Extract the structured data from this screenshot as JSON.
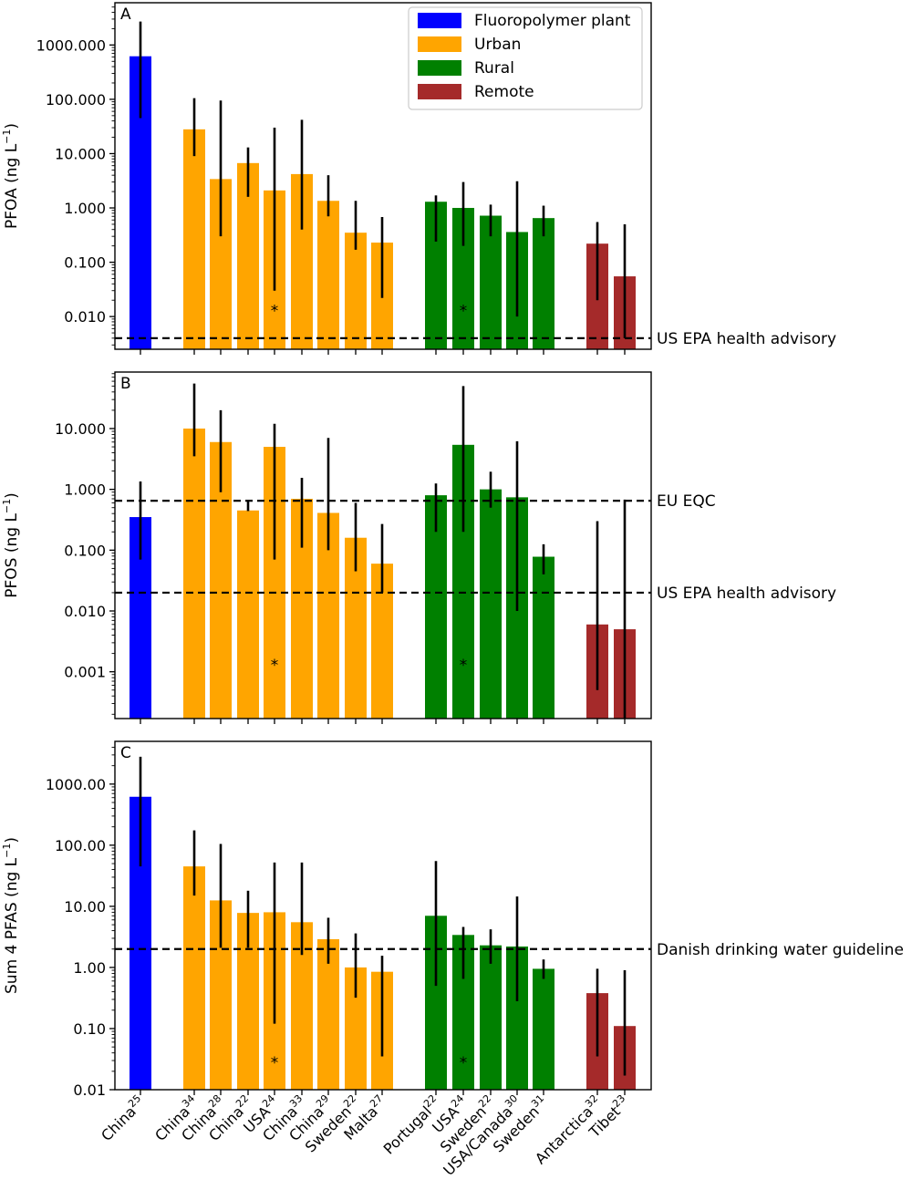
{
  "legend": {
    "placement": "top-right of panel A",
    "items": [
      {
        "label": "Fluoropolymer plant",
        "color": "#0000ff"
      },
      {
        "label": "Urban",
        "color": "#ffa500"
      },
      {
        "label": "Rural",
        "color": "#008000"
      },
      {
        "label": "Remote",
        "color": "#a52a2a"
      }
    ]
  },
  "categories": [
    {
      "name": "China",
      "ref": "25",
      "group": 0
    },
    {
      "name": "China",
      "ref": "34",
      "group": 1
    },
    {
      "name": "China",
      "ref": "28",
      "group": 1
    },
    {
      "name": "China",
      "ref": "22",
      "group": 1
    },
    {
      "name": "USA",
      "ref": "24",
      "group": 1
    },
    {
      "name": "China",
      "ref": "33",
      "group": 1
    },
    {
      "name": "China",
      "ref": "29",
      "group": 1
    },
    {
      "name": "Sweden",
      "ref": "22",
      "group": 1
    },
    {
      "name": "Malta",
      "ref": "27",
      "group": 1
    },
    {
      "name": "Portugal",
      "ref": "22",
      "group": 2
    },
    {
      "name": "USA",
      "ref": "24",
      "group": 2
    },
    {
      "name": "Sweden",
      "ref": "22",
      "group": 2
    },
    {
      "name": "USA/Canada",
      "ref": "30",
      "group": 2
    },
    {
      "name": "Sweden",
      "ref": "31",
      "group": 2
    },
    {
      "name": "Antarctica",
      "ref": "32",
      "group": 3
    },
    {
      "name": "Tibet",
      "ref": "23",
      "group": 3
    }
  ],
  "chart_data": [
    {
      "type": "bar",
      "panel_label": "A",
      "ylabel": "PFOA (ng L",
      "ylabel_sup": "−1",
      "ylabel_close": ")",
      "yscale": "log",
      "ylim": [
        0.0025,
        6000
      ],
      "yticks": [
        0.01,
        0.1,
        1,
        10,
        100,
        1000
      ],
      "ytick_labels": [
        "0.010",
        "0.100",
        "1.000",
        "10.000",
        "100.000",
        "1000.000"
      ],
      "values": [
        620,
        28,
        3.4,
        6.7,
        2.1,
        4.2,
        1.35,
        0.35,
        0.23,
        1.3,
        1.0,
        0.72,
        0.36,
        0.65,
        0.22,
        0.055
      ],
      "err_low": [
        45,
        9,
        0.3,
        1.6,
        0.03,
        0.4,
        0.7,
        0.17,
        0.022,
        0.24,
        0.2,
        0.3,
        0.01,
        0.3,
        0.02,
        0.004
      ],
      "err_high": [
        2700,
        105,
        95,
        13,
        30,
        42,
        4,
        1.35,
        0.68,
        1.7,
        3,
        1.15,
        3.1,
        1.1,
        0.55,
        0.5
      ],
      "asterisk_at": [
        4,
        10
      ],
      "asterisk_label": "*",
      "asterisk_y": 0.014,
      "reference_lines": [
        {
          "y": 0.004,
          "label": "US EPA health advisory"
        }
      ]
    },
    {
      "type": "bar",
      "panel_label": "B",
      "ylabel": "PFOS (ng L",
      "ylabel_sup": "−1",
      "ylabel_close": ")",
      "yscale": "log",
      "ylim": [
        0.00017,
        85
      ],
      "yticks": [
        0.001,
        0.01,
        0.1,
        1,
        10
      ],
      "ytick_labels": [
        "0.001",
        "0.010",
        "0.100",
        "1.000",
        "10.000"
      ],
      "values": [
        0.35,
        10,
        6,
        0.45,
        5,
        0.7,
        0.41,
        0.16,
        0.06,
        0.8,
        5.4,
        1.0,
        0.74,
        0.078,
        0.006,
        0.005
      ],
      "err_low": [
        0.07,
        3.5,
        0.9,
        0.44,
        0.07,
        0.11,
        0.1,
        0.045,
        0.02,
        0.2,
        0.2,
        0.5,
        0.01,
        0.04,
        0.0005,
        0.00017
      ],
      "err_high": [
        1.35,
        55,
        20,
        0.65,
        12,
        1.55,
        7,
        0.6,
        0.27,
        1.25,
        50,
        1.95,
        6.2,
        0.125,
        0.3,
        0.68
      ],
      "asterisk_at": [
        4,
        10
      ],
      "asterisk_label": "*",
      "asterisk_y": 0.0014,
      "reference_lines": [
        {
          "y": 0.65,
          "label": "EU EQC"
        },
        {
          "y": 0.02,
          "label": "US EPA health advisory"
        }
      ]
    },
    {
      "type": "bar",
      "panel_label": "C",
      "ylabel": "Sum 4 PFAS (ng L",
      "ylabel_sup": "−1",
      "ylabel_close": ")",
      "yscale": "log",
      "ylim": [
        0.01,
        5000
      ],
      "yticks": [
        0.01,
        0.1,
        1,
        10,
        100,
        1000
      ],
      "ytick_labels": [
        "0.01",
        "0.10",
        "1.00",
        "10.00",
        "100.00",
        "1000.00"
      ],
      "values": [
        620,
        45,
        12.5,
        7.8,
        8,
        5.5,
        2.9,
        1.0,
        0.85,
        7,
        3.4,
        2.3,
        2.2,
        0.95,
        0.38,
        0.11
      ],
      "err_low": [
        45,
        15,
        2.1,
        2.1,
        0.12,
        1.6,
        1.15,
        0.32,
        0.035,
        0.5,
        0.65,
        1.15,
        0.28,
        0.65,
        0.035,
        0.017
      ],
      "err_high": [
        2800,
        175,
        105,
        18,
        52,
        52,
        6.5,
        3.6,
        1.55,
        55,
        4.6,
        4.2,
        14.5,
        1.35,
        0.95,
        0.9
      ],
      "asterisk_at": [
        4,
        10
      ],
      "asterisk_label": "*",
      "asterisk_y": 0.03,
      "reference_lines": [
        {
          "y": 2,
          "label": "Danish drinking water guideline"
        }
      ]
    }
  ]
}
